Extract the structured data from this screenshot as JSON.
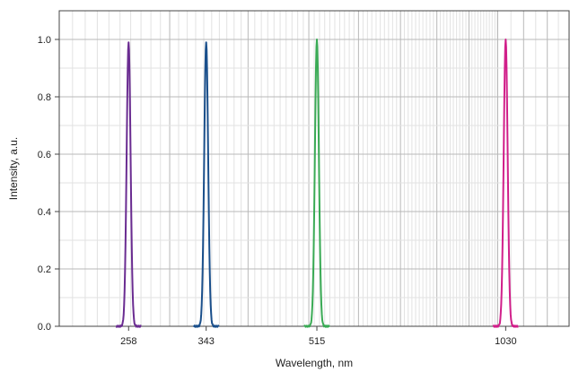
{
  "chart_data": {
    "type": "line",
    "title": "",
    "xlabel": "Wavelength, nm",
    "ylabel": "Intensity, a.u.",
    "x_scale": "log",
    "xlim": [
      200,
      1300
    ],
    "ylim": [
      0,
      1.1
    ],
    "x_ticks": [
      258,
      343,
      515,
      1030
    ],
    "x_tick_labels": [
      "258",
      "343",
      "515",
      "1030"
    ],
    "y_ticks": [
      0.0,
      0.2,
      0.4,
      0.6,
      0.8,
      1.0
    ],
    "y_tick_labels": [
      "0.0",
      "0.2",
      "0.4",
      "0.6",
      "0.8",
      "1.0"
    ],
    "grid": true,
    "series": [
      {
        "peak_nm": 258,
        "peak_intensity": 0.99,
        "color": "#6a2c91"
      },
      {
        "peak_nm": 343,
        "peak_intensity": 0.99,
        "color": "#1a4f8b"
      },
      {
        "peak_nm": 515,
        "peak_intensity": 1.0,
        "color": "#3aaa55"
      },
      {
        "peak_nm": 1030,
        "peak_intensity": 1.0,
        "color": "#d11f8a"
      }
    ]
  }
}
